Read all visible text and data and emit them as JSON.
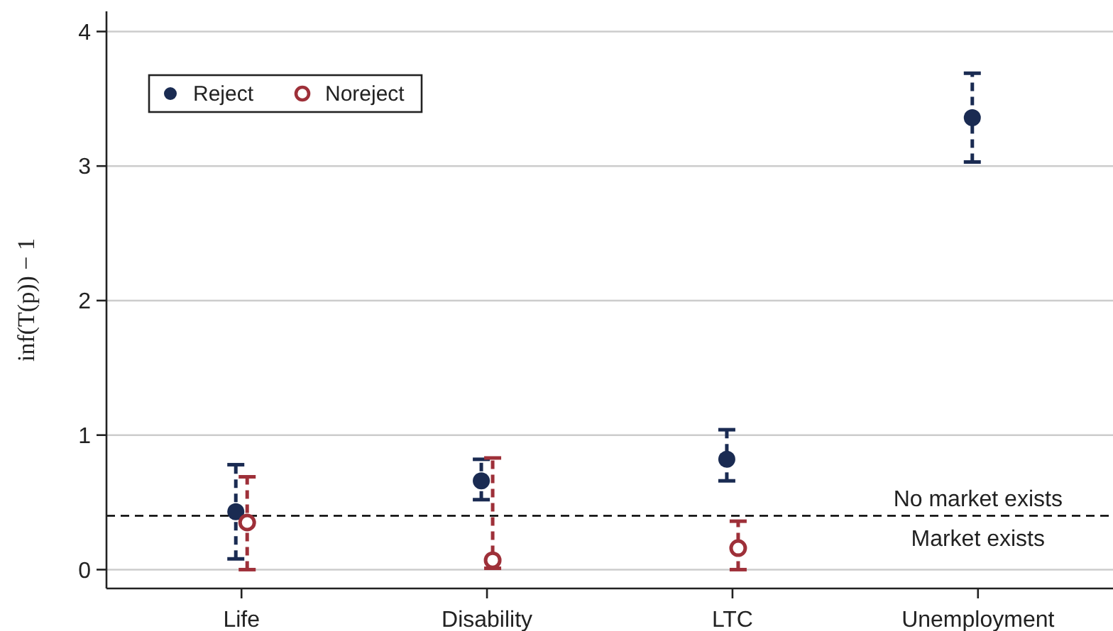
{
  "chart_data": {
    "type": "scatter",
    "ylabel": "inf(T(p)) − 1",
    "categories": [
      "Life",
      "Disability",
      "LTC",
      "Unemployment"
    ],
    "series": [
      {
        "name": "Reject",
        "color": "#1a2b52",
        "values": [
          0.43,
          0.66,
          0.82,
          3.36
        ],
        "errors": [
          [
            0.08,
            0.78
          ],
          [
            0.52,
            0.82
          ],
          [
            0.66,
            1.04
          ],
          [
            3.03,
            3.69
          ]
        ]
      },
      {
        "name": "Noreject",
        "color": "#9e3039",
        "values": [
          0.35,
          0.07,
          0.16,
          null
        ],
        "errors": [
          [
            0,
            0.69
          ],
          [
            0.01,
            0.83
          ],
          [
            0,
            0.36
          ],
          null
        ]
      }
    ],
    "ylim": [
      -0.14,
      4.15
    ],
    "yticks": [
      0,
      1,
      2,
      3,
      4
    ],
    "grid": "y",
    "legend": "top left",
    "marker": "circle",
    "line_style": "dashed",
    "ref_lines": [
      {
        "axis": "y",
        "value": 0.4,
        "color": "#000000",
        "line_style": "dashed"
      }
    ],
    "annotations": [
      {
        "text": "No market exists",
        "x": "Unemployment",
        "y": 0.4
      },
      {
        "text": "Market exists",
        "x": "Unemployment",
        "y": 0.4
      }
    ]
  }
}
